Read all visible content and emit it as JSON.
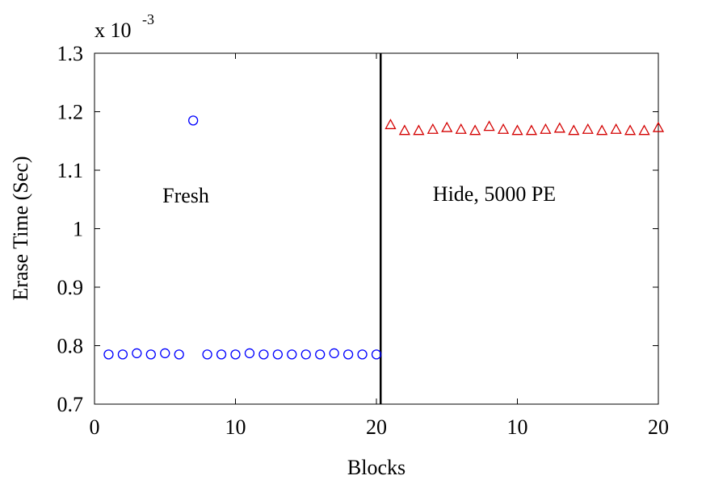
{
  "chart_data": {
    "type": "scatter",
    "xlabel": "Blocks",
    "ylabel": "Erase Time (Sec)",
    "y_multiplier": "x 10",
    "y_multiplier_exponent": "-3",
    "xlim": [
      0,
      40
    ],
    "ylim": [
      0.7,
      1.3
    ],
    "xticks": [
      0,
      10,
      20,
      {
        "value": 30,
        "label": "10"
      },
      {
        "value": 40,
        "label": "20"
      }
    ],
    "yticks": [
      0.7,
      0.8,
      0.9,
      1,
      1.1,
      1.2,
      1.3
    ],
    "vline_x": 20.3,
    "annotations": [
      "Fresh",
      "Hide, 5000 PE"
    ],
    "series": [
      {
        "name": "Fresh",
        "color": "#0000ff",
        "marker": "circle",
        "x": [
          1,
          2,
          3,
          4,
          5,
          6,
          7,
          8,
          9,
          10,
          11,
          12,
          13,
          14,
          15,
          16,
          17,
          18,
          19,
          20
        ],
        "values": [
          0.785,
          0.785,
          0.787,
          0.785,
          0.787,
          0.785,
          1.185,
          0.785,
          0.785,
          0.785,
          0.787,
          0.785,
          0.785,
          0.785,
          0.785,
          0.785,
          0.787,
          0.785,
          0.785,
          0.785
        ]
      },
      {
        "name": "Hide, 5000 PE",
        "color": "#d40000",
        "marker": "triangle",
        "x": [
          21,
          22,
          23,
          24,
          25,
          26,
          27,
          28,
          29,
          30,
          31,
          32,
          33,
          34,
          35,
          36,
          37,
          38,
          39,
          40
        ],
        "values": [
          1.178,
          1.168,
          1.168,
          1.17,
          1.173,
          1.17,
          1.168,
          1.175,
          1.17,
          1.168,
          1.168,
          1.17,
          1.172,
          1.168,
          1.17,
          1.168,
          1.17,
          1.168,
          1.168,
          1.173
        ]
      }
    ]
  }
}
